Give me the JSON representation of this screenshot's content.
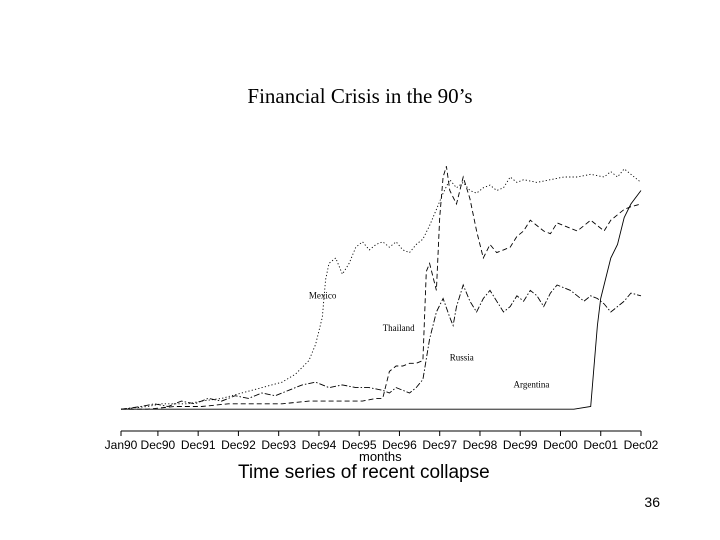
{
  "slide": {
    "title": "Financial Crisis in the 90’s",
    "page_number": "36"
  },
  "chart_data": {
    "type": "line",
    "title": "",
    "xlabel": "months",
    "caption": "Time series of recent collapse",
    "ylabel": "",
    "x_tick_labels": [
      "Jan90",
      "Dec90",
      "Dec91",
      "Dec92",
      "Dec93",
      "Dec94",
      "Dec95",
      "Dec96",
      "Dec97",
      "Dec98",
      "Dec99",
      "Dec00",
      "Dec01",
      "Dec02"
    ],
    "x_tick_months": [
      0,
      11,
      23,
      35,
      47,
      59,
      71,
      83,
      95,
      107,
      119,
      131,
      143,
      155
    ],
    "xlim": [
      0,
      155
    ],
    "ylim": [
      0,
      100
    ],
    "y_scale": "relative index (no printed axis)",
    "grid": false,
    "legend": "none (series names printed as labels on the plot)",
    "series": [
      {
        "name": "Mexico",
        "style": "dotted",
        "points": [
          [
            0,
            4
          ],
          [
            8,
            5
          ],
          [
            12,
            6
          ],
          [
            20,
            6
          ],
          [
            24,
            7
          ],
          [
            30,
            8
          ],
          [
            36,
            10
          ],
          [
            42,
            12
          ],
          [
            48,
            14
          ],
          [
            52,
            17
          ],
          [
            56,
            22
          ],
          [
            58,
            28
          ],
          [
            60,
            38
          ],
          [
            61,
            52
          ],
          [
            62,
            58
          ],
          [
            64,
            60
          ],
          [
            66,
            54
          ],
          [
            68,
            58
          ],
          [
            70,
            64
          ],
          [
            72,
            66
          ],
          [
            74,
            63
          ],
          [
            76,
            65
          ],
          [
            78,
            66
          ],
          [
            80,
            64
          ],
          [
            82,
            66
          ],
          [
            84,
            63
          ],
          [
            86,
            62
          ],
          [
            88,
            65
          ],
          [
            90,
            67
          ],
          [
            92,
            72
          ],
          [
            94,
            78
          ],
          [
            96,
            84
          ],
          [
            98,
            89
          ],
          [
            100,
            86
          ],
          [
            102,
            88
          ],
          [
            104,
            85
          ],
          [
            106,
            84
          ],
          [
            108,
            86
          ],
          [
            110,
            87
          ],
          [
            112,
            85
          ],
          [
            114,
            86
          ],
          [
            116,
            90
          ],
          [
            118,
            88
          ],
          [
            120,
            89
          ],
          [
            124,
            88
          ],
          [
            128,
            89
          ],
          [
            132,
            90
          ],
          [
            136,
            90
          ],
          [
            140,
            91
          ],
          [
            144,
            90
          ],
          [
            146,
            92
          ],
          [
            148,
            90
          ],
          [
            150,
            93
          ],
          [
            152,
            91
          ],
          [
            155,
            88
          ]
        ]
      },
      {
        "name": "Thailand",
        "style": "dashed",
        "points": [
          [
            0,
            4
          ],
          [
            8,
            4
          ],
          [
            16,
            5
          ],
          [
            24,
            5
          ],
          [
            32,
            6
          ],
          [
            40,
            6
          ],
          [
            48,
            6
          ],
          [
            56,
            7
          ],
          [
            64,
            7
          ],
          [
            72,
            7
          ],
          [
            76,
            8
          ],
          [
            78,
            8
          ],
          [
            80,
            18
          ],
          [
            82,
            20
          ],
          [
            84,
            20
          ],
          [
            86,
            21
          ],
          [
            88,
            21
          ],
          [
            90,
            22
          ],
          [
            91,
            55
          ],
          [
            92,
            58
          ],
          [
            94,
            48
          ],
          [
            95,
            75
          ],
          [
            96,
            90
          ],
          [
            97,
            94
          ],
          [
            98,
            85
          ],
          [
            100,
            80
          ],
          [
            102,
            90
          ],
          [
            104,
            82
          ],
          [
            106,
            70
          ],
          [
            108,
            60
          ],
          [
            110,
            65
          ],
          [
            112,
            62
          ],
          [
            114,
            63
          ],
          [
            116,
            64
          ],
          [
            118,
            68
          ],
          [
            120,
            70
          ],
          [
            122,
            74
          ],
          [
            124,
            72
          ],
          [
            126,
            70
          ],
          [
            128,
            69
          ],
          [
            130,
            73
          ],
          [
            132,
            72
          ],
          [
            134,
            71
          ],
          [
            136,
            70
          ],
          [
            138,
            72
          ],
          [
            140,
            74
          ],
          [
            142,
            72
          ],
          [
            144,
            70
          ],
          [
            146,
            74
          ],
          [
            148,
            76
          ],
          [
            150,
            78
          ],
          [
            152,
            79
          ],
          [
            155,
            80
          ]
        ]
      },
      {
        "name": "Russia",
        "style": "dashdot",
        "points": [
          [
            0,
            4
          ],
          [
            6,
            5
          ],
          [
            10,
            6
          ],
          [
            14,
            5
          ],
          [
            18,
            7
          ],
          [
            22,
            6
          ],
          [
            26,
            8
          ],
          [
            30,
            7
          ],
          [
            34,
            9
          ],
          [
            38,
            8
          ],
          [
            42,
            10
          ],
          [
            46,
            9
          ],
          [
            50,
            11
          ],
          [
            54,
            13
          ],
          [
            58,
            14
          ],
          [
            62,
            12
          ],
          [
            66,
            13
          ],
          [
            70,
            12
          ],
          [
            74,
            12
          ],
          [
            78,
            11
          ],
          [
            80,
            10
          ],
          [
            82,
            12
          ],
          [
            84,
            11
          ],
          [
            86,
            10
          ],
          [
            88,
            12
          ],
          [
            90,
            15
          ],
          [
            92,
            30
          ],
          [
            94,
            40
          ],
          [
            96,
            45
          ],
          [
            98,
            38
          ],
          [
            99,
            35
          ],
          [
            100,
            42
          ],
          [
            102,
            50
          ],
          [
            104,
            44
          ],
          [
            106,
            40
          ],
          [
            108,
            45
          ],
          [
            110,
            48
          ],
          [
            112,
            44
          ],
          [
            114,
            40
          ],
          [
            116,
            42
          ],
          [
            118,
            46
          ],
          [
            120,
            44
          ],
          [
            122,
            48
          ],
          [
            124,
            46
          ],
          [
            126,
            42
          ],
          [
            128,
            47
          ],
          [
            130,
            50
          ],
          [
            132,
            49
          ],
          [
            134,
            48
          ],
          [
            136,
            46
          ],
          [
            138,
            44
          ],
          [
            140,
            46
          ],
          [
            142,
            45
          ],
          [
            144,
            43
          ],
          [
            146,
            40
          ],
          [
            148,
            42
          ],
          [
            150,
            44
          ],
          [
            152,
            47
          ],
          [
            155,
            46
          ]
        ]
      },
      {
        "name": "Argentina",
        "style": "solid",
        "points": [
          [
            0,
            4
          ],
          [
            20,
            4
          ],
          [
            40,
            4
          ],
          [
            60,
            4
          ],
          [
            80,
            4
          ],
          [
            100,
            4
          ],
          [
            120,
            4
          ],
          [
            135,
            4
          ],
          [
            140,
            5
          ],
          [
            142,
            35
          ],
          [
            143,
            45
          ],
          [
            146,
            60
          ],
          [
            148,
            65
          ],
          [
            150,
            75
          ],
          [
            152,
            80
          ],
          [
            155,
            85
          ]
        ]
      }
    ],
    "series_labels": [
      {
        "series": "Mexico",
        "text": "Mexico",
        "anchor": [
          56,
          45
        ]
      },
      {
        "series": "Thailand",
        "text": "Thailand",
        "anchor": [
          78,
          33
        ]
      },
      {
        "series": "Russia",
        "text": "Russia",
        "anchor": [
          98,
          22
        ]
      },
      {
        "series": "Argentina",
        "text": "Argentina",
        "anchor": [
          117,
          12
        ]
      }
    ]
  }
}
